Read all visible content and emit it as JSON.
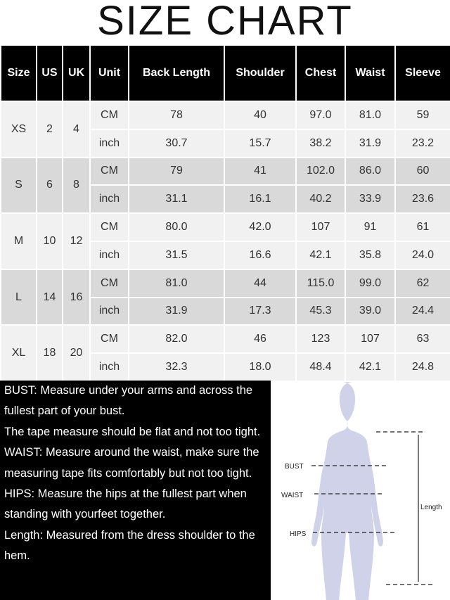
{
  "title": "SIZE CHART",
  "headers": [
    "Size",
    "US",
    "UK",
    "Unit",
    "Back Length",
    "Shoulder",
    "Chest",
    "Waist",
    "Sleeve"
  ],
  "rows": [
    {
      "size": "XS",
      "us": "2",
      "uk": "4",
      "cm": [
        "CM",
        "78",
        "40",
        "97.0",
        "81.0",
        "59"
      ],
      "inch": [
        "inch",
        "30.7",
        "15.7",
        "38.2",
        "31.9",
        "23.2"
      ]
    },
    {
      "size": "S",
      "us": "6",
      "uk": "8",
      "cm": [
        "CM",
        "79",
        "41",
        "102.0",
        "86.0",
        "60"
      ],
      "inch": [
        "inch",
        "31.1",
        "16.1",
        "40.2",
        "33.9",
        "23.6"
      ]
    },
    {
      "size": "M",
      "us": "10",
      "uk": "12",
      "cm": [
        "CM",
        "80.0",
        "42.0",
        "107",
        "91",
        "61"
      ],
      "inch": [
        "inch",
        "31.5",
        "16.6",
        "42.1",
        "35.8",
        "24.0"
      ]
    },
    {
      "size": "L",
      "us": "14",
      "uk": "16",
      "cm": [
        "CM",
        "81.0",
        "44",
        "115.0",
        "99.0",
        "62"
      ],
      "inch": [
        "inch",
        "31.9",
        "17.3",
        "45.3",
        "39.0",
        "24.4"
      ]
    },
    {
      "size": "XL",
      "us": "18",
      "uk": "20",
      "cm": [
        "CM",
        "82.0",
        "46",
        "123",
        "107",
        "63"
      ],
      "inch": [
        "inch",
        "32.3",
        "18.0",
        "48.4",
        "42.1",
        "24.8"
      ]
    }
  ],
  "notes": "BUST: Measure under your arms and across the fullest part of your bust.\nThe tape measure should be flat and not too tight.\nWAIST: Measure around the waist, make sure the measuring tape fits comfortably but not too tight.\nHIPS: Measure the hips at the fullest part when standing with yourfeet together.\nLength: Measured from the dress shoulder to the hem.",
  "figure": {
    "bust": "BUST",
    "waist": "WAIST",
    "hips": "HIPS",
    "length": "Length",
    "body_color": "#cfd2e8"
  }
}
